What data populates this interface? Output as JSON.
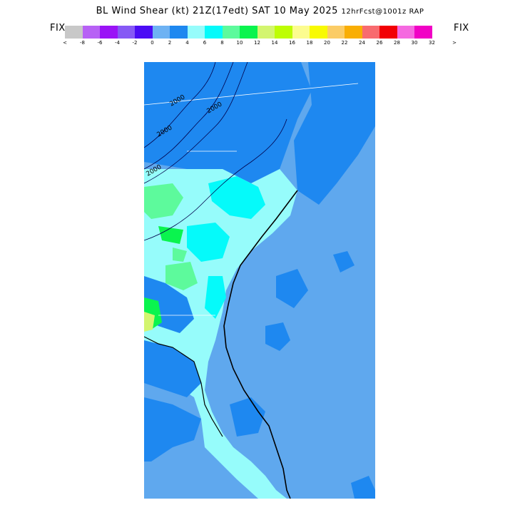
{
  "title": {
    "main": "BL Wind Shear (kt) 21Z(17edt) SAT 10 May 2025",
    "suffix": "12hrFcst@1001z RAP"
  },
  "legend": {
    "fix_left": "FIX",
    "fix_right": "FIX",
    "lt_symbol": "<",
    "gt_symbol": ">",
    "tick_labels": [
      "-8",
      "-6",
      "-4",
      "-2",
      "0",
      "2",
      "4",
      "6",
      "8",
      "10",
      "12",
      "14",
      "16",
      "18",
      "20",
      "22",
      "24",
      "26",
      "28",
      "30",
      "32"
    ],
    "colors": [
      "#c8c8c8",
      "#b761f5",
      "#9a13f6",
      "#8659f5",
      "#4b0cf5",
      "#6eb2f3",
      "#1e88f0",
      "#96fcfb",
      "#05fafa",
      "#5dfa9c",
      "#0af44e",
      "#d3f56f",
      "#befd04",
      "#fcfc8f",
      "#f8fa03",
      "#fbcc66",
      "#f9ae04",
      "#f86b6f",
      "#f20004",
      "#f569e0",
      "#f102c5"
    ]
  },
  "map": {
    "contour_labels": [
      "2000",
      "2000",
      "2000",
      "2000"
    ],
    "palette": {
      "ocean": "#5fa8ee",
      "low": "#1e88f0",
      "mid": "#96fcfb",
      "bright": "#05fafa",
      "green": "#5dfa9c",
      "lime": "#0af44e",
      "yellow_green": "#d3f56f"
    }
  }
}
